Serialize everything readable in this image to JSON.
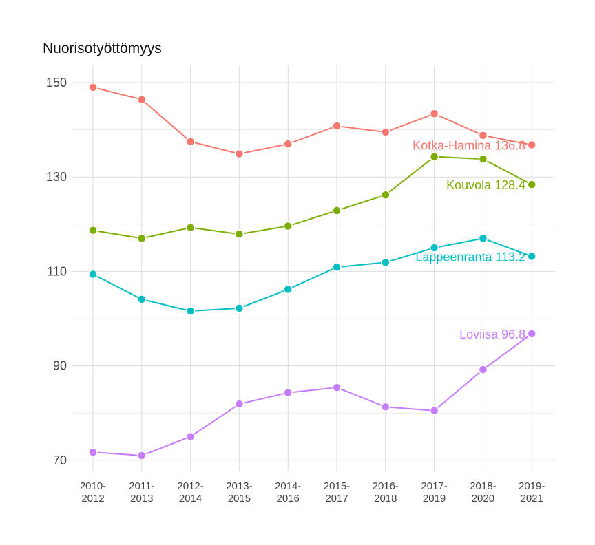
{
  "chart_data": {
    "type": "line",
    "title": "Nuorisotyöttömyys",
    "xlabel": "",
    "ylabel": "",
    "categories": [
      [
        "2010-",
        "2012"
      ],
      [
        "2011-",
        "2013"
      ],
      [
        "2012-",
        "2014"
      ],
      [
        "2013-",
        "2015"
      ],
      [
        "2014-",
        "2016"
      ],
      [
        "2015-",
        "2017"
      ],
      [
        "2016-",
        "2018"
      ],
      [
        "2017-",
        "2019"
      ],
      [
        "2018-",
        "2020"
      ],
      [
        "2019-",
        "2021"
      ]
    ],
    "ylim": [
      68,
      152
    ],
    "yticks": [
      70,
      90,
      110,
      130,
      150
    ],
    "grid": true,
    "legend": "inline-end-labels",
    "series": [
      {
        "name": "Kotka-Hamina",
        "label": "Kotka-Hamina 136.8",
        "color": "#F8766D",
        "values": [
          149.0,
          146.4,
          137.5,
          134.9,
          137.0,
          140.8,
          139.5,
          143.4,
          138.8,
          136.8
        ]
      },
      {
        "name": "Kouvola",
        "label": "Kouvola 128.4",
        "color": "#7CAE00",
        "values": [
          118.7,
          117.0,
          119.3,
          117.9,
          119.6,
          122.9,
          126.2,
          134.3,
          133.8,
          128.4
        ]
      },
      {
        "name": "Lappeenranta",
        "label": "Lappeenranta 113.2",
        "color": "#00BFC4",
        "values": [
          109.4,
          104.1,
          101.6,
          102.2,
          106.2,
          110.9,
          111.9,
          115.0,
          117.0,
          113.2
        ]
      },
      {
        "name": "Loviisa",
        "label": "Loviisa 96.8",
        "color": "#C77CFF",
        "values": [
          71.7,
          71.0,
          75.0,
          81.9,
          84.3,
          85.4,
          81.3,
          80.5,
          89.2,
          96.8
        ]
      }
    ]
  }
}
